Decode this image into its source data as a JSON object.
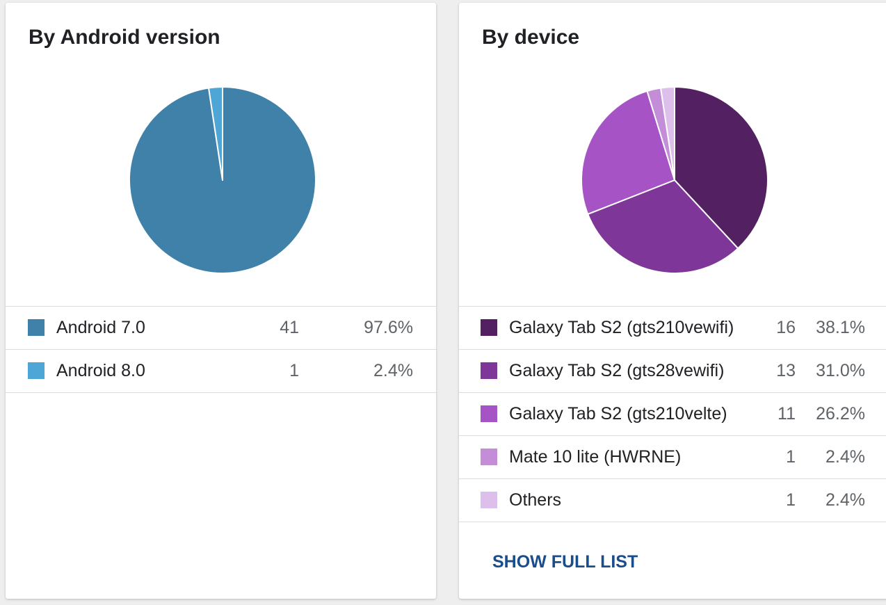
{
  "chart_data": [
    {
      "type": "pie",
      "title": "By Android version",
      "categories": [
        "Android 7.0",
        "Android 8.0"
      ],
      "values": [
        41,
        1
      ],
      "percentages": [
        "97.6%",
        "2.4%"
      ],
      "colors": [
        "#3f81a9",
        "#4ea6d6"
      ]
    },
    {
      "type": "pie",
      "title": "By device",
      "categories": [
        "Galaxy Tab S2 (gts210vewifi)",
        "Galaxy Tab S2 (gts28vewifi)",
        "Galaxy Tab S2 (gts210velte)",
        "Mate 10 lite (HWRNE)",
        "Others"
      ],
      "values": [
        16,
        13,
        11,
        1,
        1
      ],
      "percentages": [
        "38.1%",
        "31.0%",
        "26.2%",
        "2.4%",
        "2.4%"
      ],
      "colors": [
        "#532162",
        "#7e3798",
        "#a654c5",
        "#c38dd8",
        "#dcbfea"
      ]
    }
  ],
  "device_card": {
    "show_full_list": "SHOW FULL LIST"
  }
}
